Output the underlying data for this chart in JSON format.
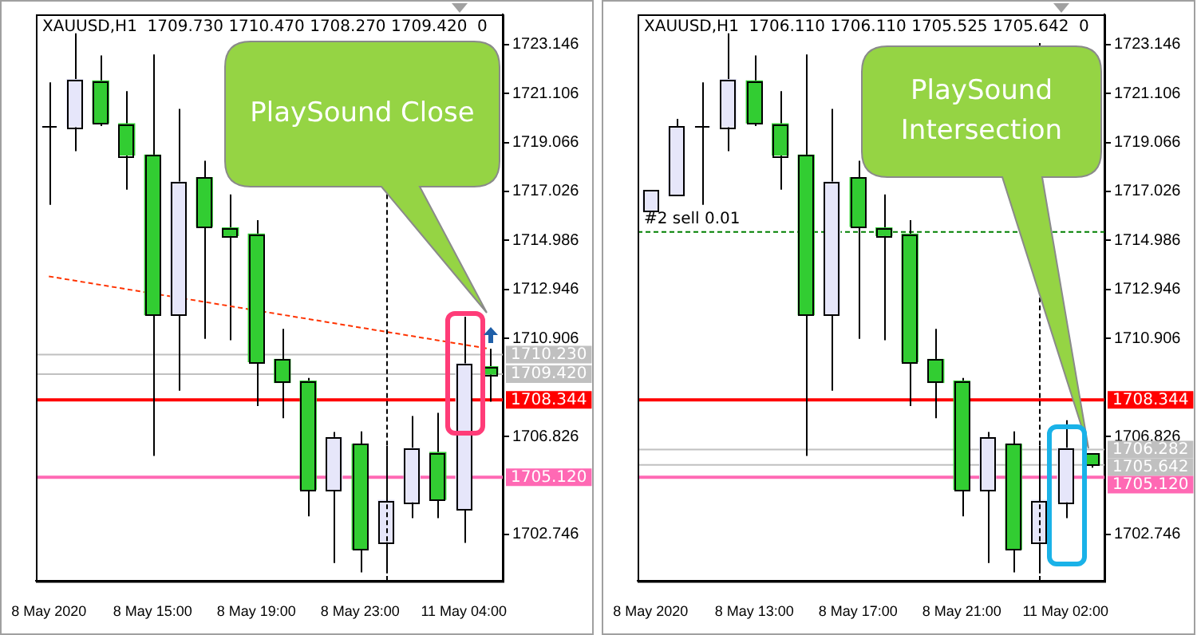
{
  "chart_data": [
    {
      "type": "candlestick",
      "title": "XAUUSD,H1  1709.730 1710.470 1708.270 1709.420  0",
      "categories": [
        "8 May 2020",
        null,
        null,
        null,
        "8 May 15:00",
        null,
        null,
        null,
        "8 May 19:00",
        null,
        null,
        null,
        "8 May 23:00",
        null,
        null,
        null,
        "11 May 04:00",
        null
      ],
      "ohlc": [
        [
          1719.72,
          1721.57,
          1716.47,
          1719.72
        ],
        [
          1719.72,
          1723.61,
          1718.7,
          1721.69
        ],
        [
          1721.63,
          1722.69,
          1719.75,
          1719.88
        ],
        [
          1719.84,
          1721.2,
          1717.1,
          1718.54
        ],
        [
          1718.54,
          1722.73,
          1706.01,
          1711.89
        ],
        [
          1711.89,
          1720.46,
          1708.73,
          1717.42
        ],
        [
          1717.6,
          1718.3,
          1710.89,
          1715.57
        ],
        [
          1715.51,
          1716.9,
          1710.83,
          1715.19
        ],
        [
          1715.25,
          1715.83,
          1708.09,
          1709.94
        ],
        [
          1710.03,
          1711.3,
          1707.58,
          1709.07
        ],
        [
          1709.13,
          1709.26,
          1703.5,
          1704.61
        ],
        [
          1704.61,
          1707.01,
          1701.55,
          1706.78
        ],
        [
          1706.5,
          1707.03,
          1701.16,
          1702.12
        ],
        [
          1702.44,
          1706.43,
          1701.12,
          1704.16
        ],
        [
          1704.1,
          1707.67,
          1703.42,
          1706.33
        ],
        [
          1706.16,
          1707.81,
          1703.42,
          1704.2
        ],
        [
          1703.78,
          1711.81,
          1702.39,
          1709.84
        ],
        [
          1709.73,
          1710.47,
          1708.27,
          1709.42
        ]
      ],
      "colors": [
        "#e6e6fa",
        "#e6e6fa",
        "#32cd32",
        "#32cd32",
        "#32cd32",
        "#e6e6fa",
        "#32cd32",
        "#32cd32",
        "#32cd32",
        "#32cd32",
        "#32cd32",
        "#e6e6fa",
        "#32cd32",
        "#e6e6fa",
        "#e6e6fa",
        "#32cd32",
        "#e6e6fa",
        "#32cd32"
      ],
      "series": [
        {
          "type": "line",
          "color": "#ff3300",
          "line_style": "dashed",
          "values": [
            1713.49,
            null,
            null,
            null,
            null,
            null,
            null,
            null,
            null,
            null,
            null,
            null,
            null,
            null,
            null,
            null,
            null,
            1710.47
          ]
        }
      ],
      "ylim": [
        1700.8,
        1724.4
      ],
      "yticks": [
        1723.146,
        1721.106,
        1719.066,
        1717.026,
        1714.986,
        1712.946,
        1710.906,
        1706.826,
        1702.746
      ],
      "ref_lines": [
        {
          "axis": "y",
          "value": 1710.23,
          "label": "1710.230",
          "color": "#c0c0c0"
        },
        {
          "axis": "y",
          "value": 1709.42,
          "label": "1709.420",
          "color": "#c0c0c0"
        },
        {
          "axis": "y",
          "value": 1708.344,
          "label": "1708.344",
          "color": "#ff0000"
        },
        {
          "axis": "y",
          "value": 1705.12,
          "label": "1705.120",
          "color": "#ff69b4"
        }
      ],
      "annotations": [
        "PlaySound Close"
      ]
    },
    {
      "type": "candlestick",
      "title": "XAUUSD,H1  1706.110 1706.110 1705.525 1705.642  0",
      "categories": [
        "8 May 2020",
        null,
        null,
        null,
        "8 May 13:00",
        null,
        null,
        null,
        "8 May 17:00",
        null,
        null,
        null,
        "8 May 21:00",
        null,
        null,
        null,
        "11 May 02:00",
        null
      ],
      "ohlc": [
        [
          1716.21,
          1717.06,
          1716.21,
          1717.06
        ],
        [
          1716.85,
          1720.05,
          1716.85,
          1719.72
        ],
        [
          1719.72,
          1721.57,
          1716.47,
          1719.72
        ],
        [
          1719.72,
          1723.61,
          1718.7,
          1721.69
        ],
        [
          1721.63,
          1722.69,
          1719.75,
          1719.88
        ],
        [
          1719.84,
          1721.2,
          1717.1,
          1718.54
        ],
        [
          1718.54,
          1722.73,
          1706.01,
          1711.89
        ],
        [
          1711.89,
          1720.46,
          1708.73,
          1717.42
        ],
        [
          1717.6,
          1718.3,
          1710.89,
          1715.57
        ],
        [
          1715.51,
          1716.9,
          1710.83,
          1715.19
        ],
        [
          1715.25,
          1715.83,
          1708.09,
          1709.94
        ],
        [
          1710.03,
          1711.3,
          1707.58,
          1709.07
        ],
        [
          1709.13,
          1709.26,
          1703.5,
          1704.61
        ],
        [
          1704.61,
          1707.01,
          1701.55,
          1706.78
        ],
        [
          1706.5,
          1707.03,
          1701.16,
          1702.12
        ],
        [
          1702.44,
          1706.43,
          1701.12,
          1704.16
        ],
        [
          1704.1,
          1707.5,
          1703.42,
          1706.33
        ],
        [
          1706.11,
          1706.11,
          1705.525,
          1705.642
        ]
      ],
      "colors": [
        "#e6e6fa",
        "#e6e6fa",
        "#e6e6fa",
        "#e6e6fa",
        "#32cd32",
        "#32cd32",
        "#32cd32",
        "#e6e6fa",
        "#32cd32",
        "#32cd32",
        "#32cd32",
        "#32cd32",
        "#32cd32",
        "#e6e6fa",
        "#32cd32",
        "#e6e6fa",
        "#e6e6fa",
        "#32cd32"
      ],
      "ylim": [
        1700.8,
        1724.4
      ],
      "yticks": [
        1723.146,
        1721.106,
        1719.066,
        1717.026,
        1714.986,
        1712.946,
        1710.906,
        1706.826,
        1702.746
      ],
      "ref_lines": [
        {
          "axis": "y",
          "value": 1715.34,
          "label": "#2 sell 0.01",
          "color": "#008000",
          "line_style": "dashed"
        },
        {
          "axis": "y",
          "value": 1706.282,
          "label": "1706.282",
          "color": "#c0c0c0"
        },
        {
          "axis": "y",
          "value": 1705.642,
          "label": "1705.642",
          "color": "#c0c0c0"
        },
        {
          "axis": "y",
          "value": 1708.344,
          "label": "1708.344",
          "color": "#ff0000"
        },
        {
          "axis": "y",
          "value": 1705.12,
          "label": "1705.120",
          "color": "#ff69b4"
        }
      ],
      "annotations": [
        "PlaySound Intersection"
      ]
    }
  ]
}
